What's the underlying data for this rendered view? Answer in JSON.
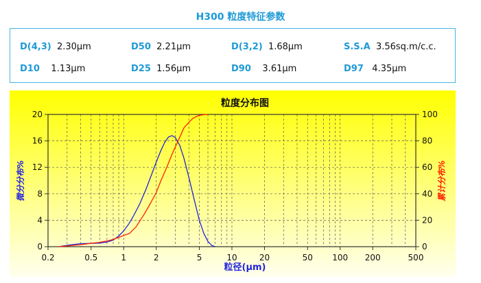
{
  "header": {
    "title": "H300 粒度特征参数"
  },
  "params": [
    {
      "key": "D(4,3)",
      "value": "2.30μm"
    },
    {
      "key": "D50",
      "value": "2.21μm"
    },
    {
      "key": "D(3,2)",
      "value": "1.68μm"
    },
    {
      "key": "S.S.A",
      "value": "3.56sq.m/c.c."
    },
    {
      "key": "D10",
      "value": "1.13μm"
    },
    {
      "key": "D25",
      "value": "1.56μm"
    },
    {
      "key": "D90",
      "value": "3.61μm"
    },
    {
      "key": "D97",
      "value": "4.35μm"
    }
  ],
  "colors": {
    "accent": "#1e9ad6",
    "differential": "#2222dd",
    "cumulative": "#ff2200",
    "bg_top": "#ffff00",
    "bg_bottom": "#ffffee"
  },
  "chart_data": {
    "type": "line",
    "title": "粒度分布图",
    "xlabel": "粒径(μm)",
    "ylabel_left": "微分分布%",
    "ylabel_right": "累计分布%",
    "x_scale": "log",
    "xlim": [
      0.2,
      500
    ],
    "x_ticks": [
      0.2,
      0.5,
      1,
      2,
      5,
      10,
      20,
      50,
      100,
      200,
      500
    ],
    "x_tick_labels": [
      "0.2",
      "0.5",
      "1",
      "2",
      "5",
      "10",
      "20",
      "50",
      "100",
      "200",
      "500"
    ],
    "ylim_left": [
      0,
      20
    ],
    "y_ticks_left": [
      0,
      4,
      8,
      12,
      16,
      20
    ],
    "ylim_right": [
      0,
      100
    ],
    "y_ticks_right": [
      0,
      20,
      40,
      60,
      80,
      100
    ],
    "grid": true,
    "series": [
      {
        "axis": "left",
        "color": "#2222dd",
        "x": [
          0.25,
          0.3,
          0.35,
          0.4,
          0.5,
          0.6,
          0.7,
          0.8,
          0.9,
          1.0,
          1.1,
          1.2,
          1.4,
          1.6,
          1.8,
          2.0,
          2.2,
          2.4,
          2.6,
          2.8,
          3.0,
          3.3,
          3.6,
          4.0,
          4.5,
          5.0,
          5.5,
          6.0,
          6.5,
          7.0
        ],
        "values": [
          0,
          0.2,
          0.35,
          0.45,
          0.5,
          0.55,
          0.7,
          1.0,
          1.6,
          2.4,
          3.3,
          4.3,
          6.4,
          8.6,
          10.8,
          12.8,
          14.5,
          15.8,
          16.6,
          16.8,
          16.5,
          15.3,
          13.4,
          10.5,
          7.0,
          4.0,
          2.0,
          0.8,
          0.2,
          0
        ]
      },
      {
        "axis": "right",
        "color": "#ff2200",
        "x": [
          0.25,
          0.3,
          0.4,
          0.5,
          0.6,
          0.7,
          0.8,
          0.9,
          1.0,
          1.13,
          1.3,
          1.56,
          1.8,
          2.0,
          2.21,
          2.5,
          2.8,
          3.1,
          3.61,
          4.0,
          4.35,
          4.7,
          5.0,
          5.5,
          6.0
        ],
        "values": [
          0,
          0.5,
          1.5,
          2.5,
          3.3,
          4.3,
          5.5,
          7.0,
          8.5,
          10.0,
          15.0,
          25.0,
          34.0,
          41.0,
          50.0,
          60.0,
          70.0,
          78.0,
          90.0,
          94.0,
          97.0,
          98.5,
          99.3,
          99.8,
          100.0
        ]
      }
    ]
  }
}
